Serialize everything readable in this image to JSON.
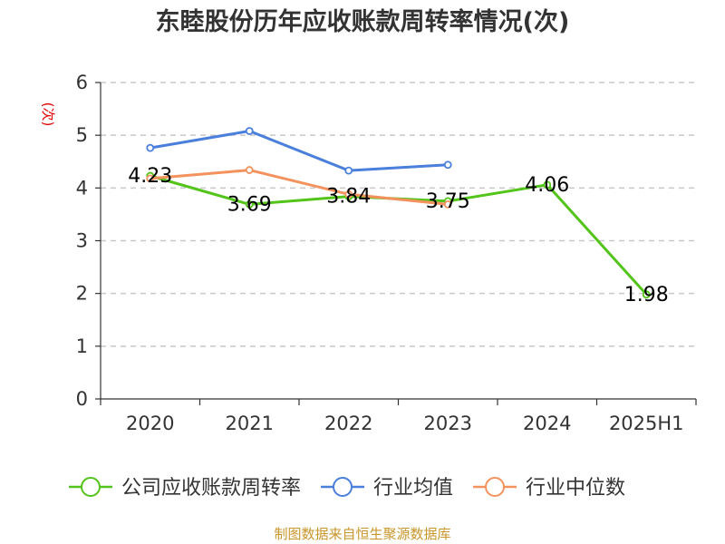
{
  "chart_data": {
    "type": "line",
    "title": "东睦股份历年应收账款周转率情况(次)",
    "ylabel": "(次)",
    "xlabel": "",
    "categories": [
      "2020",
      "2021",
      "2022",
      "2023",
      "2024",
      "2025H1"
    ],
    "ylim": [
      0,
      6
    ],
    "yticks": [
      0,
      1,
      2,
      3,
      4,
      5,
      6
    ],
    "grid": true,
    "legend_position": "bottom",
    "series": [
      {
        "name": "公司应收账款周转率",
        "color": "#52c41a",
        "values": [
          4.23,
          3.69,
          3.84,
          3.75,
          4.06,
          1.98
        ],
        "show_labels": true
      },
      {
        "name": "行业均值",
        "color": "#4a7fdc",
        "values": [
          4.76,
          5.08,
          4.33,
          4.44,
          null,
          null
        ],
        "show_labels": false
      },
      {
        "name": "行业中位数",
        "color": "#f4925e",
        "values": [
          4.18,
          4.34,
          3.88,
          3.69,
          null,
          null
        ],
        "show_labels": false
      }
    ]
  },
  "source_text": "制图数据来自恒生聚源数据库"
}
